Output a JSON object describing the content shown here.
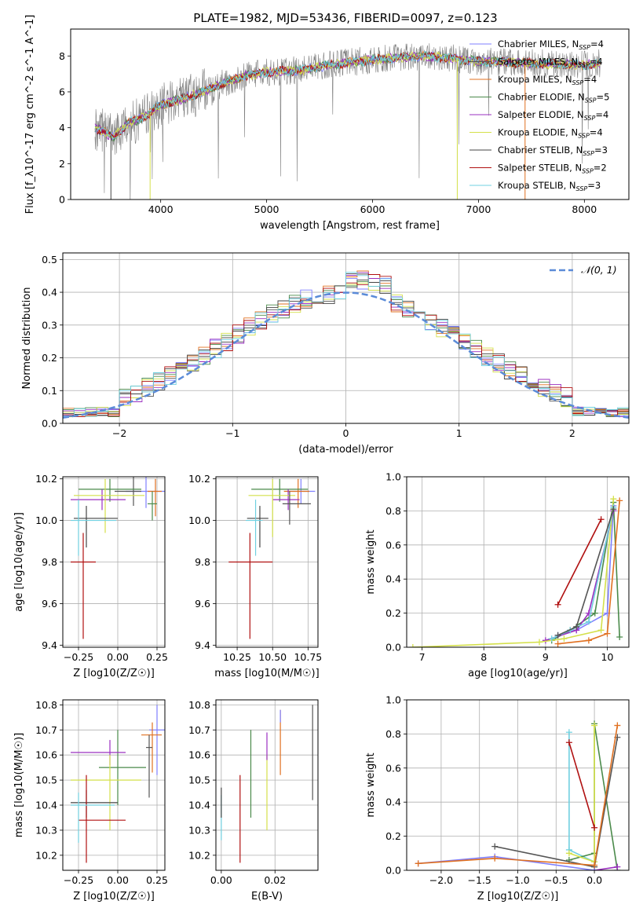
{
  "figure_title": "PLATE=1982, MJD=53436, FIBERID=0097, z=0.123",
  "series_styles": [
    {
      "name": "Chabrier MILES",
      "nssp": "4",
      "color": "#7f7fff"
    },
    {
      "name": "Salpeter MILES",
      "nssp": "4",
      "color": "#555555"
    },
    {
      "name": "Kroupa MILES",
      "nssp": "4",
      "color": "#e07020"
    },
    {
      "name": "Chabrier ELODIE",
      "nssp": "5",
      "color": "#4a8a4a"
    },
    {
      "name": "Salpeter ELODIE",
      "nssp": "4",
      "color": "#9b30c0"
    },
    {
      "name": "Kroupa ELODIE",
      "nssp": "4",
      "color": "#d4e04a"
    },
    {
      "name": "Chabrier STELIB",
      "nssp": "3",
      "color": "#444444"
    },
    {
      "name": "Salpeter STELIB",
      "nssp": "2",
      "color": "#b01010"
    },
    {
      "name": "Kroupa STELIB",
      "nssp": "3",
      "color": "#70d0e0"
    }
  ],
  "chart_data": [
    {
      "id": "spectrum",
      "type": "line",
      "xlabel": "wavelength [Angstrom, rest frame]",
      "ylabel": "Flux [f_λ10^-17 erg cm^-2 s^-1 A^-1]",
      "xlim": [
        3150,
        8420
      ],
      "ylim": [
        0,
        9.5
      ],
      "xticks": [
        4000,
        5000,
        6000,
        7000,
        8000
      ],
      "yticks": [
        0,
        2,
        4,
        6,
        8
      ],
      "grid": false,
      "legend": "right",
      "legend_labels": [
        "Chabrier MILES, N_SSP=4",
        "Salpeter MILES, N_SSP=4",
        "Kroupa MILES, N_SSP=4",
        "Chabrier ELODIE, N_SSP=5",
        "Salpeter ELODIE, N_SSP=4",
        "Kroupa ELODIE, N_SSP=4",
        "Chabrier STELIB, N_SSP=3",
        "Salpeter STELIB, N_SSP=2",
        "Kroupa STELIB, N_SSP=3"
      ],
      "data_range": [
        3380,
        8150
      ],
      "continuum": {
        "x": [
          3380,
          3550,
          3700,
          3850,
          4000,
          4200,
          4400,
          4600,
          4800,
          5000,
          5300,
          5600,
          6000,
          6500,
          7000,
          7500,
          8000,
          8150
        ],
        "y": [
          4.0,
          3.5,
          4.3,
          4.6,
          5.3,
          5.6,
          6.0,
          6.5,
          6.9,
          7.1,
          7.2,
          7.5,
          7.8,
          8.0,
          7.7,
          7.6,
          7.5,
          7.6
        ]
      }
    },
    {
      "id": "residuals",
      "type": "line",
      "xlabel": "(data-model)/error",
      "ylabel": "Normed distribution",
      "xlim": [
        -2.5,
        2.5
      ],
      "ylim": [
        0,
        0.52
      ],
      "xticks": [
        -2,
        -1,
        0,
        1,
        2
      ],
      "yticks": [
        0.0,
        0.1,
        0.2,
        0.3,
        0.4,
        0.5
      ],
      "grid": true,
      "legend": "top-right",
      "legend_label": "𝒩(0, 1)",
      "bins": 50
    },
    {
      "id": "age-Z",
      "type": "scatter",
      "xlabel": "Z [log10(Z/Z☉)]",
      "ylabel": "age [log10(age/yr)]",
      "xlim": [
        -0.35,
        0.3
      ],
      "ylim": [
        9.39,
        10.21
      ],
      "xticks": [
        -0.25,
        0.0,
        0.25
      ],
      "yticks": [
        9.4,
        9.6,
        9.8,
        10.0,
        10.2
      ],
      "grid": true,
      "points": [
        {
          "s": 0,
          "x": 0.18,
          "y": 10.14,
          "xerr": [
            0.13,
            0.13
          ],
          "yerr": [
            0.08,
            0.08
          ]
        },
        {
          "s": 1,
          "x": 0.1,
          "y": 10.14,
          "xerr": [
            0.12,
            0.05
          ],
          "yerr": [
            0.07,
            0.07
          ]
        },
        {
          "s": 2,
          "x": 0.24,
          "y": 10.14,
          "xerr": [
            0.05,
            0.04
          ],
          "yerr": [
            0.12,
            0.06
          ]
        },
        {
          "s": 3,
          "x": -0.05,
          "y": 10.15,
          "xerr": [
            0.2,
            0.2
          ],
          "yerr": [
            0.06,
            0.05
          ]
        },
        {
          "s": 4,
          "x": -0.1,
          "y": 10.1,
          "xerr": [
            0.2,
            0.15
          ],
          "yerr": [
            0.05,
            0.05
          ]
        },
        {
          "s": 5,
          "x": -0.08,
          "y": 10.12,
          "xerr": [
            0.2,
            0.25
          ],
          "yerr": [
            0.18,
            0.08
          ]
        },
        {
          "s": 6,
          "x": -0.2,
          "y": 10.01,
          "xerr": [
            0.08,
            0.2
          ],
          "yerr": [
            0.14,
            0.06
          ]
        },
        {
          "s": 7,
          "x": -0.22,
          "y": 9.8,
          "xerr": [
            0.08,
            0.08
          ],
          "yerr": [
            0.37,
            0.14
          ]
        },
        {
          "s": 8,
          "x": -0.25,
          "y": 10.0,
          "xerr": [
            0.05,
            0.24
          ],
          "yerr": [
            0.17,
            0.1
          ]
        },
        {
          "s": 3,
          "x": 0.22,
          "y": 10.08,
          "xerr": [
            0.03,
            0.03
          ],
          "yerr": [
            0.08,
            0.06
          ]
        }
      ]
    },
    {
      "id": "age-mass",
      "type": "scatter",
      "xlabel": "mass [log10(M/M☉)]",
      "ylabel": "",
      "xlim": [
        10.1,
        10.82
      ],
      "ylim": [
        9.39,
        10.21
      ],
      "xticks": [
        10.25,
        10.5,
        10.75
      ],
      "yticks": [
        9.4,
        9.6,
        9.8,
        10.0,
        10.2
      ],
      "grid": true,
      "points": [
        {
          "s": 0,
          "x": 10.7,
          "y": 10.14,
          "xerr": [
            0.1,
            0.1
          ],
          "yerr": [
            0.06,
            0.06
          ]
        },
        {
          "s": 2,
          "x": 10.68,
          "y": 10.14,
          "xerr": [
            0.1,
            0.08
          ],
          "yerr": [
            0.08,
            0.06
          ]
        },
        {
          "s": 3,
          "x": 10.55,
          "y": 10.15,
          "xerr": [
            0.2,
            0.2
          ],
          "yerr": [
            0.06,
            0.05
          ]
        },
        {
          "s": 4,
          "x": 10.61,
          "y": 10.1,
          "xerr": [
            0.11,
            0.08
          ],
          "yerr": [
            0.05,
            0.05
          ]
        },
        {
          "s": 5,
          "x": 10.5,
          "y": 10.12,
          "xerr": [
            0.17,
            0.16
          ],
          "yerr": [
            0.2,
            0.08
          ]
        },
        {
          "s": 6,
          "x": 10.41,
          "y": 10.01,
          "xerr": [
            0.09,
            0.06
          ],
          "yerr": [
            0.14,
            0.06
          ]
        },
        {
          "s": 7,
          "x": 10.34,
          "y": 9.8,
          "xerr": [
            0.15,
            0.16
          ],
          "yerr": [
            0.37,
            0.14
          ]
        },
        {
          "s": 8,
          "x": 10.38,
          "y": 10.0,
          "xerr": [
            0.07,
            0.05
          ],
          "yerr": [
            0.17,
            0.1
          ]
        },
        {
          "s": 1,
          "x": 10.62,
          "y": 10.08,
          "xerr": [
            0.05,
            0.15
          ],
          "yerr": [
            0.1,
            0.06
          ]
        }
      ]
    },
    {
      "id": "weight-age",
      "type": "line",
      "xlabel": "age [log10(age/yr)]",
      "ylabel": "mass weight",
      "xlim": [
        6.75,
        10.35
      ],
      "ylim": [
        0,
        1.0
      ],
      "xticks": [
        7,
        8,
        9,
        10
      ],
      "yticks": [
        0.0,
        0.2,
        0.4,
        0.6,
        0.8,
        1.0
      ],
      "grid": true,
      "series": [
        {
          "s": 0,
          "x": [
            9.2,
            9.5,
            10.0,
            10.1
          ],
          "y": [
            0.07,
            0.1,
            0.2,
            0.83
          ]
        },
        {
          "s": 3,
          "x": [
            9.1,
            9.4,
            9.8,
            10.1,
            10.2
          ],
          "y": [
            0.04,
            0.1,
            0.2,
            0.85,
            0.06
          ]
        },
        {
          "s": 4,
          "x": [
            9.0,
            9.5,
            9.7,
            10.1
          ],
          "y": [
            0.04,
            0.1,
            0.2,
            0.8
          ]
        },
        {
          "s": 5,
          "x": [
            6.85,
            8.9,
            9.3,
            9.9,
            10.1
          ],
          "y": [
            0.0,
            0.03,
            0.05,
            0.1,
            0.87
          ]
        },
        {
          "s": 7,
          "x": [
            9.2,
            9.9
          ],
          "y": [
            0.25,
            0.75
          ]
        },
        {
          "s": 8,
          "x": [
            9.1,
            9.4,
            9.7,
            10.1
          ],
          "y": [
            0.05,
            0.1,
            0.15,
            0.82
          ]
        },
        {
          "s": 1,
          "x": [
            9.2,
            9.5,
            10.1
          ],
          "y": [
            0.07,
            0.12,
            0.81
          ]
        },
        {
          "s": 2,
          "x": [
            9.2,
            9.7,
            10.0,
            10.2
          ],
          "y": [
            0.02,
            0.04,
            0.08,
            0.86
          ]
        }
      ]
    },
    {
      "id": "mass-Z",
      "type": "scatter",
      "xlabel": "Z [log10(Z/Z☉)]",
      "ylabel": "mass [log10(M/M☉)]",
      "xlim": [
        -0.35,
        0.3
      ],
      "ylim": [
        10.14,
        10.82
      ],
      "xticks": [
        -0.25,
        0.0,
        0.25
      ],
      "yticks": [
        10.2,
        10.3,
        10.4,
        10.5,
        10.6,
        10.7,
        10.8
      ],
      "grid": true,
      "points": [
        {
          "s": 0,
          "x": 0.25,
          "y": 10.7,
          "xerr": [
            0.05,
            0.05
          ],
          "yerr": [
            0.18,
            0.1
          ]
        },
        {
          "s": 2,
          "x": 0.22,
          "y": 10.68,
          "xerr": [
            0.07,
            0.06
          ],
          "yerr": [
            0.15,
            0.05
          ]
        },
        {
          "s": 3,
          "x": 0.0,
          "y": 10.55,
          "xerr": [
            0.12,
            0.18
          ],
          "yerr": [
            0.15,
            0.15
          ]
        },
        {
          "s": 4,
          "x": -0.05,
          "y": 10.61,
          "xerr": [
            0.25,
            0.1
          ],
          "yerr": [
            0.05,
            0.05
          ]
        },
        {
          "s": 5,
          "x": -0.05,
          "y": 10.5,
          "xerr": [
            0.25,
            0.2
          ],
          "yerr": [
            0.2,
            0.1
          ]
        },
        {
          "s": 6,
          "x": -0.2,
          "y": 10.41,
          "xerr": [
            0.1,
            0.2
          ],
          "yerr": [
            0.06,
            0.05
          ]
        },
        {
          "s": 7,
          "x": -0.2,
          "y": 10.34,
          "xerr": [
            0.05,
            0.25
          ],
          "yerr": [
            0.17,
            0.18
          ]
        },
        {
          "s": 8,
          "x": -0.25,
          "y": 10.4,
          "xerr": [
            0.05,
            0.23
          ],
          "yerr": [
            0.15,
            0.05
          ]
        },
        {
          "s": 1,
          "x": 0.2,
          "y": 10.63,
          "xerr": [
            0.02,
            0.02
          ],
          "yerr": [
            0.2,
            0.05
          ]
        }
      ]
    },
    {
      "id": "mass-EBV",
      "type": "scatter",
      "xlabel": "E(B-V)",
      "ylabel": "",
      "xlim": [
        -0.002,
        0.036
      ],
      "ylim": [
        10.14,
        10.82
      ],
      "xticks": [
        0.0,
        0.02
      ],
      "yticks": [
        10.2,
        10.3,
        10.4,
        10.5,
        10.6,
        10.7,
        10.8
      ],
      "grid": true,
      "points": [
        {
          "s": 8,
          "x": 0.0,
          "y": 10.36,
          "xerr": [
            0,
            0
          ],
          "yerr": [
            0.1,
            0.08
          ]
        },
        {
          "s": 6,
          "x": 0.0,
          "y": 10.41,
          "xerr": [
            0,
            0
          ],
          "yerr": [
            0.06,
            0.06
          ]
        },
        {
          "s": 7,
          "x": 0.007,
          "y": 10.34,
          "xerr": [
            0,
            0
          ],
          "yerr": [
            0.17,
            0.18
          ]
        },
        {
          "s": 3,
          "x": 0.011,
          "y": 10.55,
          "xerr": [
            0,
            0
          ],
          "yerr": [
            0.2,
            0.15
          ]
        },
        {
          "s": 5,
          "x": 0.017,
          "y": 10.5,
          "xerr": [
            0,
            0
          ],
          "yerr": [
            0.2,
            0.1
          ]
        },
        {
          "s": 4,
          "x": 0.017,
          "y": 10.63,
          "xerr": [
            0,
            0
          ],
          "yerr": [
            0.05,
            0.06
          ]
        },
        {
          "s": 2,
          "x": 0.022,
          "y": 10.68,
          "xerr": [
            0,
            0
          ],
          "yerr": [
            0.16,
            0.1
          ]
        },
        {
          "s": 0,
          "x": 0.022,
          "y": 10.75,
          "xerr": [
            0,
            0
          ],
          "yerr": [
            0.02,
            0.03
          ]
        },
        {
          "s": 1,
          "x": 0.034,
          "y": 10.62,
          "xerr": [
            0,
            0
          ],
          "yerr": [
            0.2,
            0.18
          ]
        }
      ]
    },
    {
      "id": "weight-Z",
      "type": "line",
      "xlabel": "Z [log10(Z/Z☉)]",
      "ylabel": "mass weight",
      "xlim": [
        -2.45,
        0.45
      ],
      "ylim": [
        0,
        1.0
      ],
      "xticks": [
        -2.0,
        -1.5,
        -1.0,
        -0.5,
        0.0
      ],
      "yticks": [
        0.0,
        0.2,
        0.4,
        0.6,
        0.8,
        1.0
      ],
      "grid": true,
      "series": [
        {
          "s": 8,
          "x": [
            -0.33,
            -0.33,
            0.0,
            0.0
          ],
          "y": [
            0.81,
            0.12,
            0.05,
            0.02
          ]
        },
        {
          "s": 3,
          "x": [
            -0.33,
            0.0,
            0.0,
            0.3
          ],
          "y": [
            0.06,
            0.1,
            0.86,
            0.0
          ]
        },
        {
          "s": 5,
          "x": [
            -0.33,
            0.0,
            0.0
          ],
          "y": [
            0.1,
            0.05,
            0.85
          ]
        },
        {
          "s": 7,
          "x": [
            -0.33,
            0.0
          ],
          "y": [
            0.75,
            0.25
          ]
        },
        {
          "s": 4,
          "x": [
            0.0,
            0.3
          ],
          "y": [
            0.0,
            0.02
          ]
        },
        {
          "s": 1,
          "x": [
            -1.3,
            0.0,
            0.3
          ],
          "y": [
            0.14,
            0.02,
            0.78
          ]
        },
        {
          "s": 0,
          "x": [
            -2.3,
            -1.3,
            0.0
          ],
          "y": [
            0.04,
            0.08,
            0.0
          ]
        },
        {
          "s": 2,
          "x": [
            -2.3,
            -1.3,
            0.0,
            0.3
          ],
          "y": [
            0.04,
            0.07,
            0.03,
            0.85
          ]
        }
      ]
    }
  ]
}
